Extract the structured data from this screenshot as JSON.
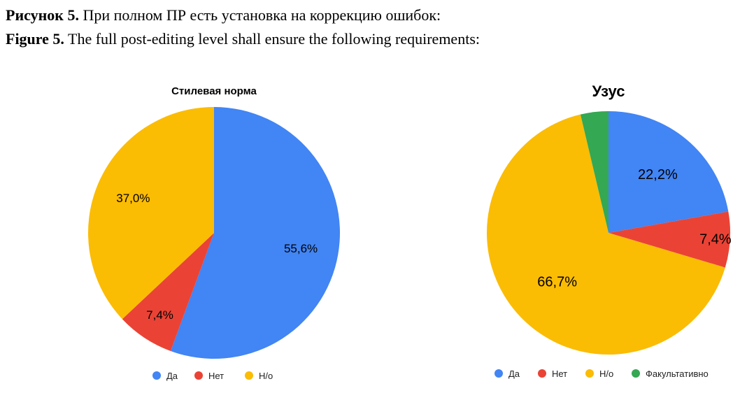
{
  "caption": {
    "ru_lead": "Рисунок 5.",
    "ru_text": " При полном ПР есть установка на коррекцию ошибок:",
    "en_lead": "Figure 5.",
    "en_text": " The full post-editing level shall ensure the following requirements:"
  },
  "chart_data": [
    {
      "type": "pie",
      "title": "Стилевая норма",
      "labels": [
        "Да",
        "Нет",
        "Н/о"
      ],
      "values": [
        55.6,
        7.4,
        37.0
      ],
      "value_labels": [
        "55,6%",
        "7,4%",
        "37,0%"
      ],
      "colors": [
        "#4285f4",
        "#ea4335",
        "#fbbc04"
      ],
      "legend": "bottom"
    },
    {
      "type": "pie",
      "title": "Узус",
      "labels": [
        "Да",
        "Нет",
        "Н/о",
        "Факультативно"
      ],
      "values": [
        22.2,
        7.4,
        66.7,
        3.7
      ],
      "value_labels": [
        "22,2%",
        "7,4%",
        "66,7%",
        ""
      ],
      "colors": [
        "#4285f4",
        "#ea4335",
        "#fbbc04",
        "#34a853"
      ],
      "legend": "bottom"
    }
  ]
}
